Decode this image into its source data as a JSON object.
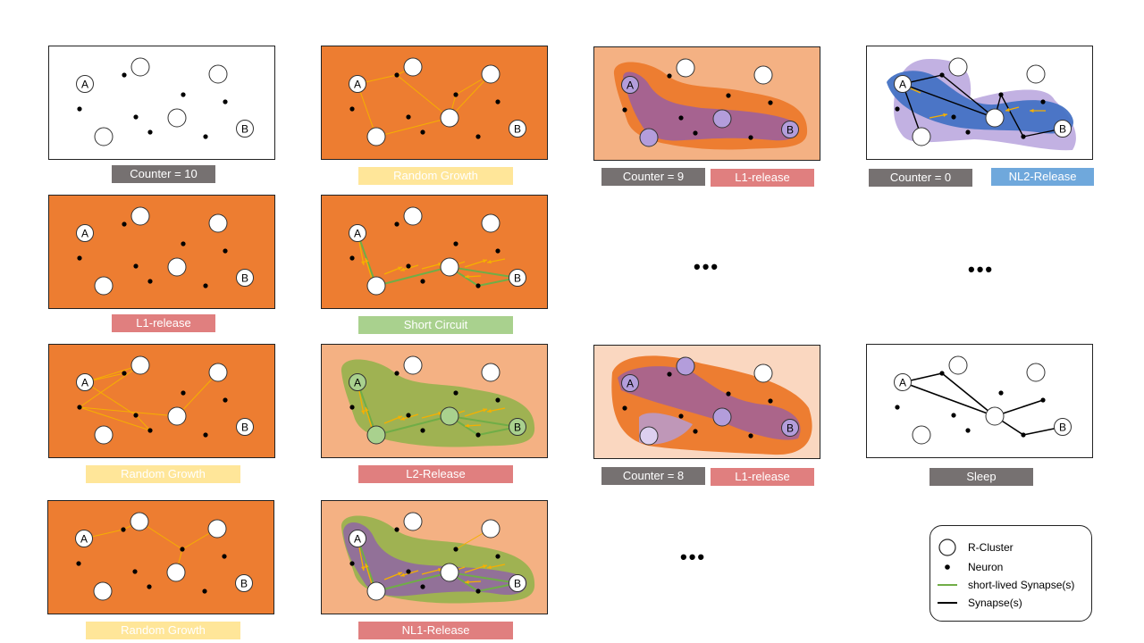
{
  "colors": {
    "orange": "#ed7d31",
    "peach": "#f4b183",
    "lightpeach": "#fad7c0",
    "purple": "#8e5bb0",
    "lilac": "#b39ddb",
    "green": "#8fb34a",
    "blue": "#4472c4",
    "gray_label": "#767171",
    "yellow_label": "#ffe699",
    "red_label": "#e07f7f",
    "green_label": "#a9d18e",
    "blue_label": "#6fa8dc",
    "synapse_orange": "#f5b000",
    "short_lived_green": "#70ad47"
  },
  "cluster_a_label": "A",
  "cluster_b_label": "B",
  "labels": {
    "c1r1": "Counter = 10",
    "c2r1": "Random Growth",
    "c3r1_counter": "Counter = 9",
    "c3r1_release": "L1-release",
    "c4r1_counter": "Counter = 0",
    "c4r1_release": "NL2-Release",
    "c1r2": "L1-release",
    "c2r2": "Short Circuit",
    "c1r3": "Random Growth",
    "c2r3": "L2-Release",
    "c3r3_counter": "Counter = 8",
    "c3r3_release": "L1-release",
    "c4r3": "Sleep",
    "c1r4": "Random Growth",
    "c2r4": "NL1-Release"
  },
  "ellipsis": "•••",
  "legend": {
    "r_cluster": "R-Cluster",
    "neuron": "Neuron",
    "short_lived": "short-lived Synapse(s)",
    "synapse": "Synapse(s)"
  }
}
